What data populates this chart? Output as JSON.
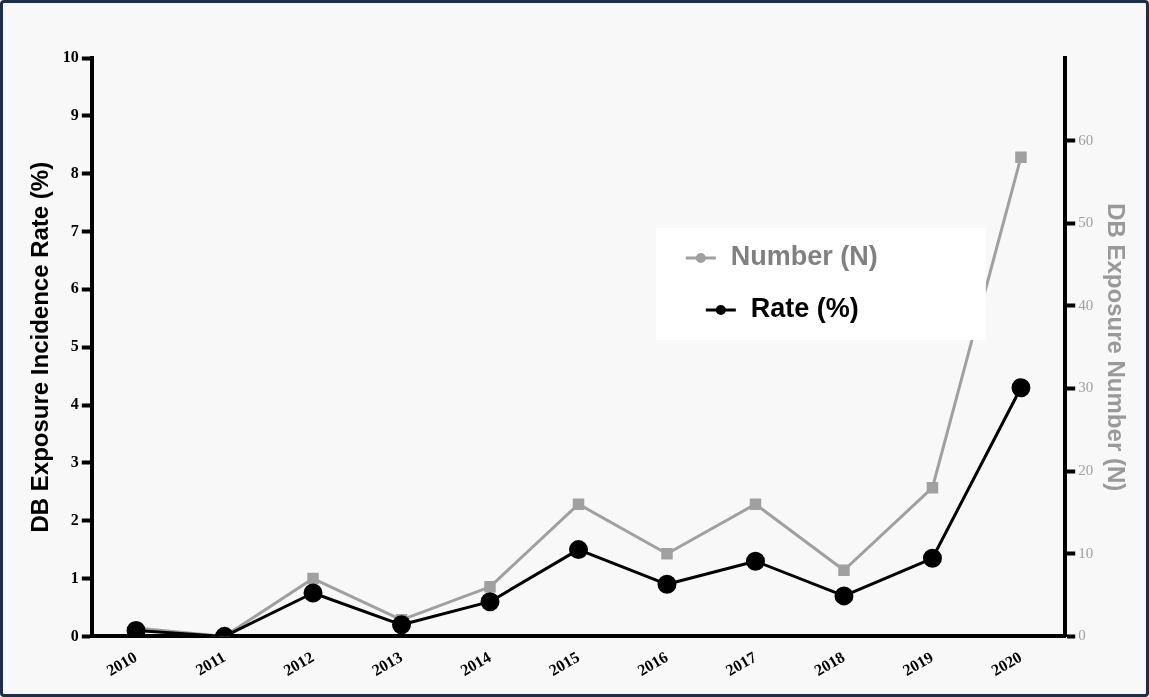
{
  "chart_data": {
    "type": "line",
    "categories": [
      "2010",
      "2011",
      "2012",
      "2013",
      "2014",
      "2015",
      "2016",
      "2017",
      "2018",
      "2019",
      "2020"
    ],
    "ylabel": "DB Exposure Incidence Rate (%)",
    "y2label": "DB Exposure Number (N)",
    "ylim": [
      0,
      10
    ],
    "yticks": [
      0,
      1,
      2,
      3,
      4,
      5,
      6,
      7,
      8,
      9,
      10
    ],
    "y2lim": [
      0,
      70
    ],
    "y2ticks": [
      0,
      10,
      20,
      30,
      40,
      50,
      60
    ],
    "grid": false,
    "legend": "top right",
    "series": [
      {
        "name": "Number (N)",
        "color": "#a0a0a0",
        "axis": "y2",
        "marker": "square",
        "values": [
          1,
          0,
          7,
          2,
          6,
          16,
          10,
          16,
          8,
          18,
          58
        ]
      },
      {
        "name": "Rate (%)",
        "color": "#000000",
        "axis": "y",
        "marker": "circle",
        "values": [
          0.1,
          0,
          0.75,
          0.2,
          0.6,
          1.5,
          0.9,
          1.3,
          0.7,
          1.35,
          4.3
        ]
      }
    ]
  }
}
